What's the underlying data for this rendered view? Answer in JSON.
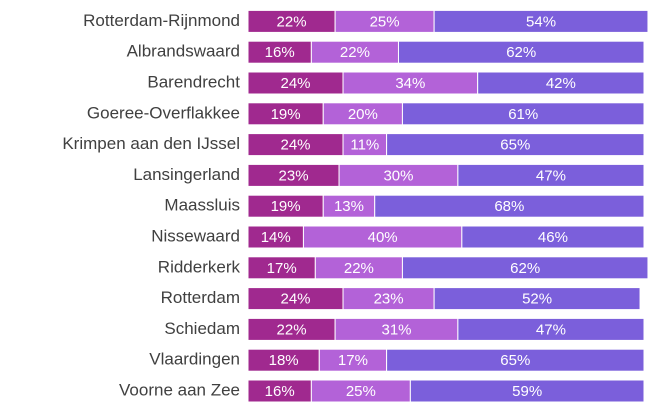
{
  "chart_data": {
    "type": "stacked_bar_horizontal",
    "categories": [
      "Rotterdam-Rijnmond",
      "Albrandswaard",
      "Barendrecht",
      "Goeree-Overflakkee",
      "Krimpen aan den IJssel",
      "Lansingerland",
      "Maassluis",
      "Nissewaard",
      "Ridderkerk",
      "Rotterdam",
      "Schiedam",
      "Vlaardingen",
      "Voorne aan Zee"
    ],
    "xlim": [
      0,
      100
    ],
    "series": [
      {
        "color": "#a0298f",
        "values": [
          22,
          16,
          24,
          19,
          24,
          23,
          19,
          14,
          17,
          24,
          22,
          18,
          16
        ],
        "value_labels": [
          "22%",
          "16%",
          "24%",
          "19%",
          "24%",
          "23%",
          "19%",
          "14%",
          "17%",
          "24%",
          "22%",
          "18%",
          "16%"
        ]
      },
      {
        "color": "#b362d8",
        "values": [
          25,
          22,
          34,
          20,
          11,
          30,
          13,
          40,
          22,
          23,
          31,
          17,
          25
        ],
        "value_labels": [
          "25%",
          "22%",
          "34%",
          "20%",
          "11%",
          "30%",
          "13%",
          "40%",
          "22%",
          "23%",
          "31%",
          "17%",
          "25%"
        ]
      },
      {
        "color": "#7b5fdb",
        "values": [
          54,
          62,
          42,
          61,
          65,
          47,
          68,
          46,
          62,
          52,
          47,
          65,
          59
        ],
        "value_labels": [
          "54%",
          "62%",
          "42%",
          "61%",
          "65%",
          "47%",
          "68%",
          "46%",
          "62%",
          "52%",
          "47%",
          "65%",
          "59%"
        ]
      }
    ]
  }
}
